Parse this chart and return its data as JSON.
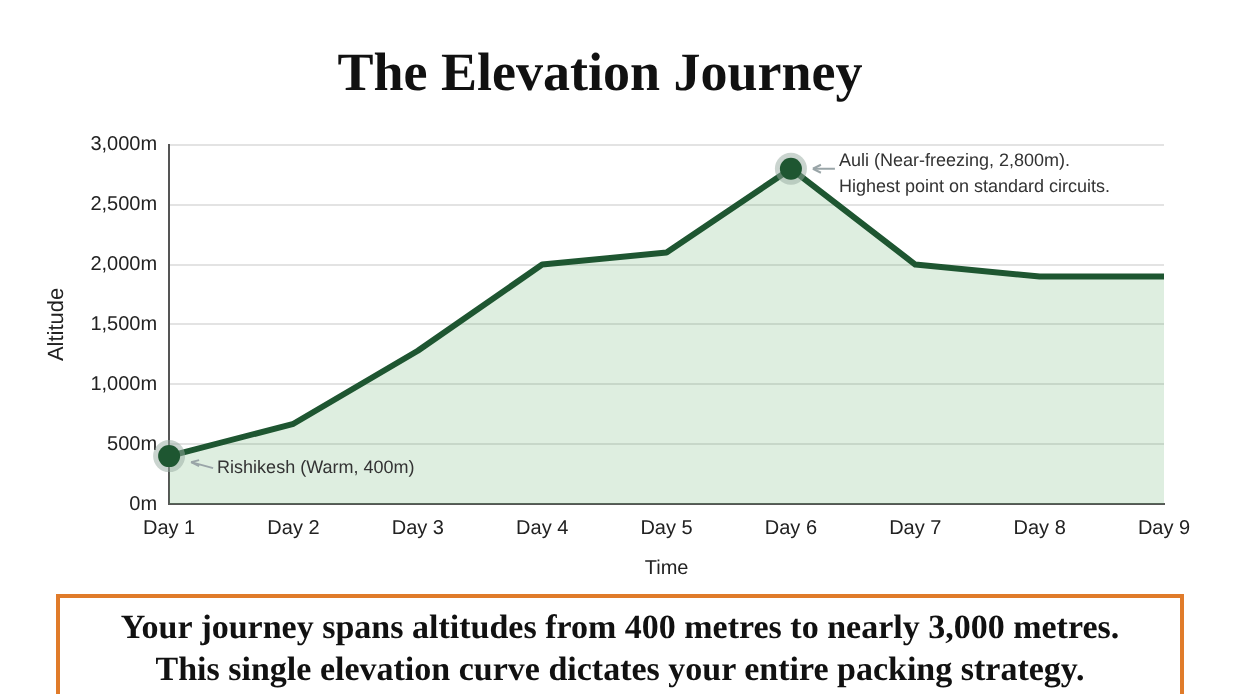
{
  "chart_data": {
    "type": "area",
    "title": "The Elevation Journey",
    "xlabel": "Time",
    "ylabel": "Altitude",
    "categories": [
      "Day 1",
      "Day 2",
      "Day 3",
      "Day 4",
      "Day 5",
      "Day 6",
      "Day 7",
      "Day 8",
      "Day 9"
    ],
    "series": [
      {
        "color": "#1e5631",
        "values": [
          400,
          670,
          1280,
          2000,
          2100,
          2800,
          2000,
          1900,
          1900
        ]
      }
    ],
    "ylim": [
      0,
      3000
    ],
    "yticks": [
      {
        "value": 0,
        "label": "0m"
      },
      {
        "value": 500,
        "label": "500m"
      },
      {
        "value": 1000,
        "label": "1,000m"
      },
      {
        "value": 1500,
        "label": "1,500m"
      },
      {
        "value": 2000,
        "label": "2,000m"
      },
      {
        "value": 2500,
        "label": "2,500m"
      },
      {
        "value": 3000,
        "label": "3,000m"
      }
    ],
    "grid": "y",
    "legend": false,
    "marker": "none",
    "line_style": "solid",
    "annotations": [
      {
        "text": "Rishikesh (Warm, 400m)",
        "x": "Day 1",
        "y": 400
      },
      {
        "text": "Auli (Near-freezing, 2,800m).\nHighest point on standard circuits.",
        "x": "Day 6",
        "y": 2800
      },
      "Your journey spans altitudes from 400 metres to nearly 3,000 metres.\nThis single elevation curve dictates your entire packing strategy."
    ]
  }
}
